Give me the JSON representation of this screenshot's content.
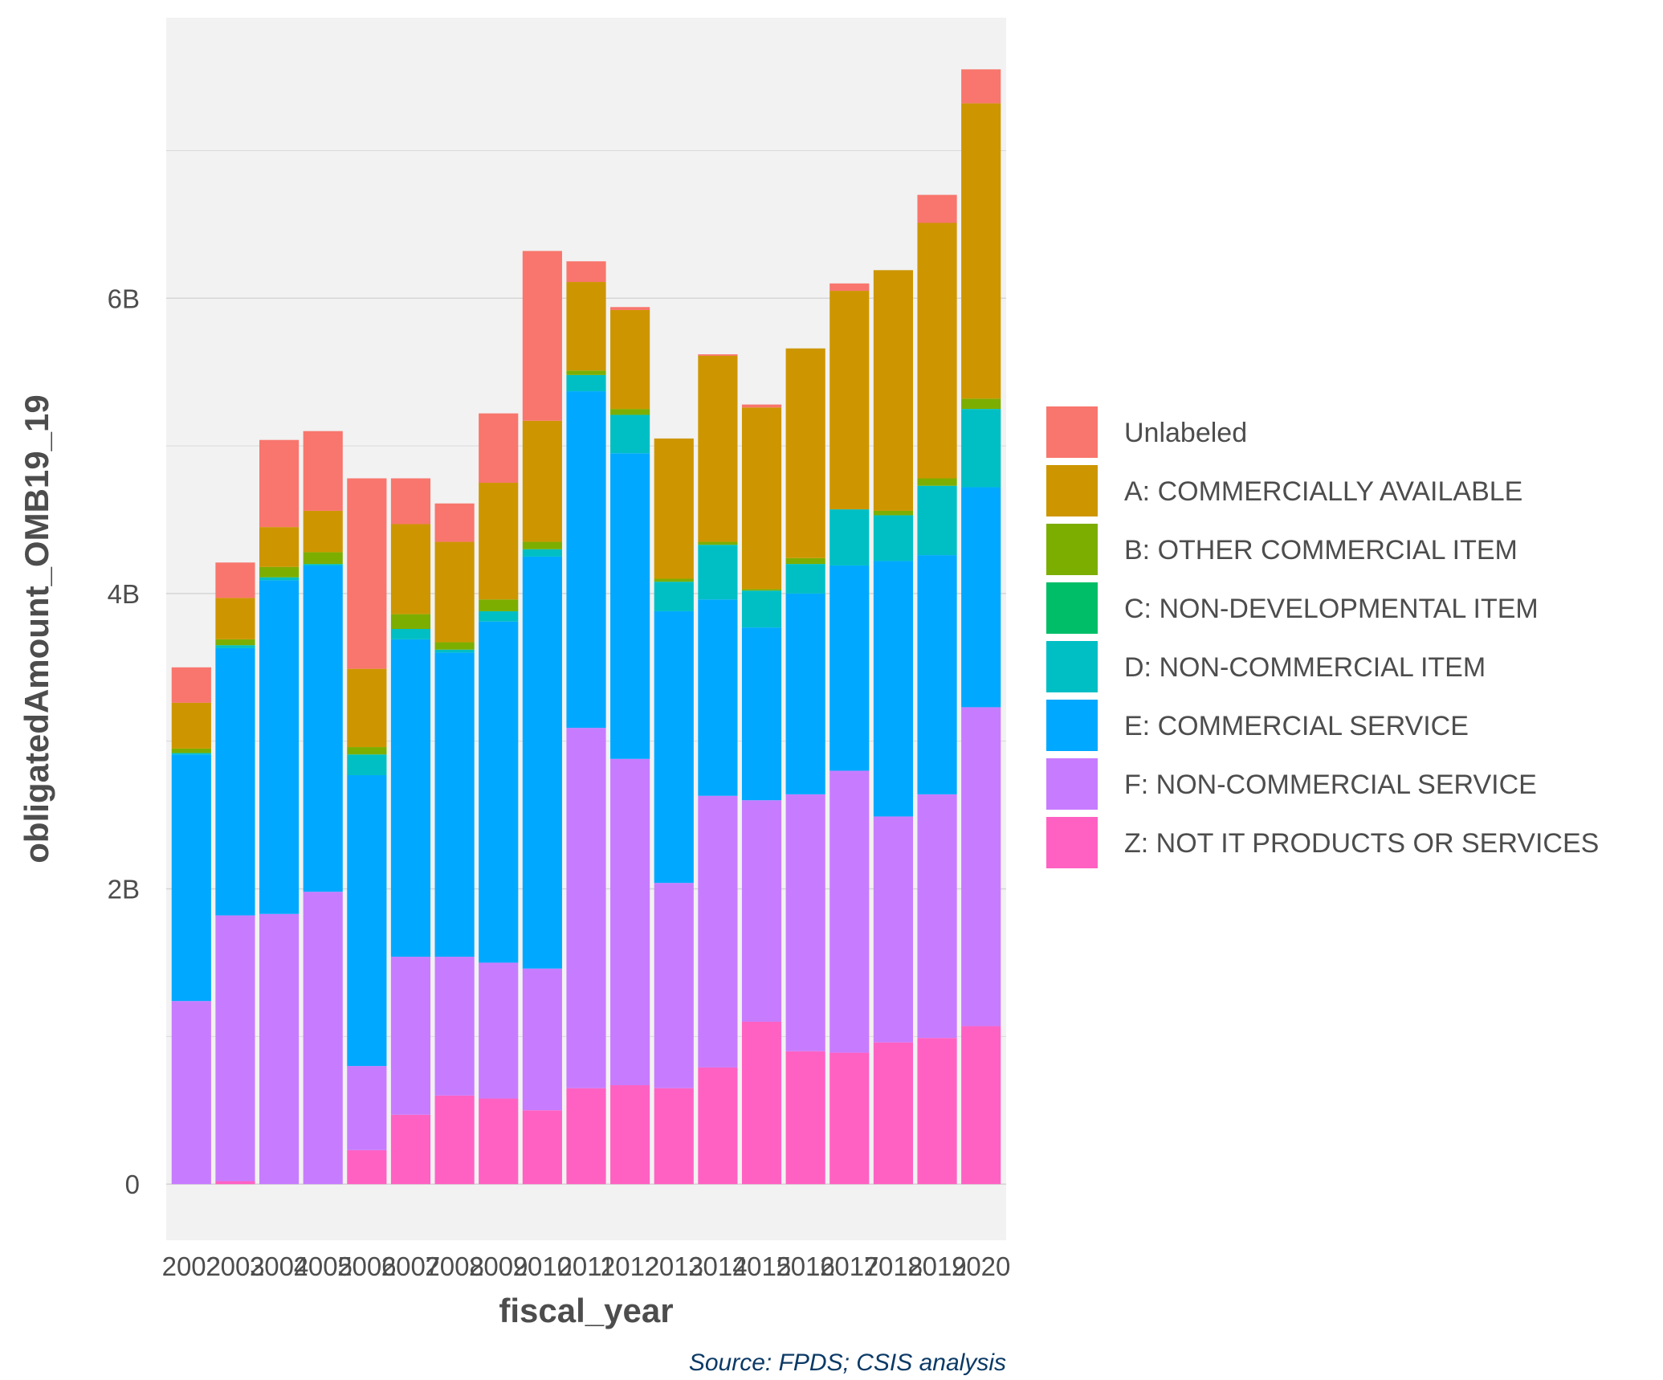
{
  "chart_data": {
    "type": "bar",
    "stacked": true,
    "xlabel": "fiscal_year",
    "ylabel": "obligatedAmount_OMB19_19",
    "ylim": [
      -0.38,
      7.9
    ],
    "y_ticks": [
      {
        "value": 0,
        "label": "0"
      },
      {
        "value": 2,
        "label": "2B"
      },
      {
        "value": 4,
        "label": "4B"
      },
      {
        "value": 6,
        "label": "6B"
      }
    ],
    "y_unit": "B",
    "grid": true,
    "legend_position": "right",
    "caption": "Source: FPDS; CSIS analysis",
    "categories": [
      "2002",
      "2003",
      "2004",
      "2005",
      "2006",
      "2007",
      "2008",
      "2009",
      "2010",
      "2011",
      "2012",
      "2013",
      "2014",
      "2015",
      "2016",
      "2017",
      "2018",
      "2019",
      "2020"
    ],
    "series": [
      {
        "name": "Z: NOT IT PRODUCTS OR SERVICES",
        "color": "#FF61C3",
        "values": [
          0.0,
          0.02,
          0.0,
          0.0,
          0.23,
          0.47,
          0.6,
          0.58,
          0.5,
          0.65,
          0.67,
          0.65,
          0.79,
          1.1,
          0.9,
          0.89,
          0.96,
          0.99,
          1.07
        ]
      },
      {
        "name": "F: NON-COMMERCIAL SERVICE",
        "color": "#C77CFF",
        "values": [
          1.24,
          1.8,
          1.83,
          1.98,
          0.57,
          1.07,
          0.94,
          0.92,
          0.96,
          2.44,
          2.21,
          1.39,
          1.84,
          1.5,
          1.74,
          1.91,
          1.53,
          1.65,
          2.16
        ]
      },
      {
        "name": "E: COMMERCIAL SERVICE",
        "color": "#00A9FF",
        "values": [
          1.67,
          1.81,
          2.26,
          2.21,
          1.97,
          2.15,
          2.06,
          2.31,
          2.79,
          2.28,
          2.07,
          1.84,
          1.33,
          1.17,
          1.36,
          1.39,
          1.73,
          1.62,
          1.49
        ]
      },
      {
        "name": "D: NON-COMMERCIAL ITEM",
        "color": "#00BFC4",
        "values": [
          0.01,
          0.02,
          0.02,
          0.01,
          0.14,
          0.07,
          0.02,
          0.07,
          0.05,
          0.11,
          0.26,
          0.2,
          0.37,
          0.25,
          0.2,
          0.38,
          0.31,
          0.47,
          0.53
        ]
      },
      {
        "name": "C: NON-DEVELOPMENTAL ITEM",
        "color": "#00BE67",
        "values": [
          0.0,
          0.0,
          0.0,
          0.0,
          0.0,
          0.0,
          0.0,
          0.0,
          0.0,
          0.0,
          0.0,
          0.0,
          0.0,
          0.0,
          0.0,
          0.0,
          0.0,
          0.0,
          0.0
        ]
      },
      {
        "name": "B: OTHER COMMERCIAL ITEM",
        "color": "#7CAE00",
        "values": [
          0.03,
          0.04,
          0.07,
          0.08,
          0.05,
          0.1,
          0.05,
          0.08,
          0.05,
          0.03,
          0.04,
          0.02,
          0.02,
          0.01,
          0.04,
          0.0,
          0.03,
          0.05,
          0.07
        ]
      },
      {
        "name": "A: COMMERCIALLY AVAILABLE",
        "color": "#CD9600",
        "values": [
          0.31,
          0.28,
          0.27,
          0.28,
          0.53,
          0.61,
          0.68,
          0.79,
          0.82,
          0.6,
          0.67,
          0.95,
          1.26,
          1.23,
          1.42,
          1.48,
          1.63,
          1.73,
          2.0
        ]
      },
      {
        "name": "Unlabeled",
        "color": "#F8766D",
        "values": [
          0.24,
          0.24,
          0.59,
          0.54,
          1.29,
          0.31,
          0.26,
          0.47,
          1.15,
          0.14,
          0.02,
          0.0,
          0.01,
          0.02,
          0.0,
          0.05,
          0.0,
          0.19,
          0.23
        ]
      }
    ],
    "legend_order": [
      "Unlabeled",
      "A: COMMERCIALLY AVAILABLE",
      "B: OTHER COMMERCIAL ITEM",
      "C: NON-DEVELOPMENTAL ITEM",
      "D: NON-COMMERCIAL ITEM",
      "E: COMMERCIAL SERVICE",
      "F: NON-COMMERCIAL SERVICE",
      "Z: NOT IT PRODUCTS OR SERVICES"
    ]
  },
  "colors": {
    "panel_background": "#F2F2F2",
    "gridline": "#D6D6D6",
    "text": "#4D4D4D",
    "caption": "#0B3A66"
  }
}
